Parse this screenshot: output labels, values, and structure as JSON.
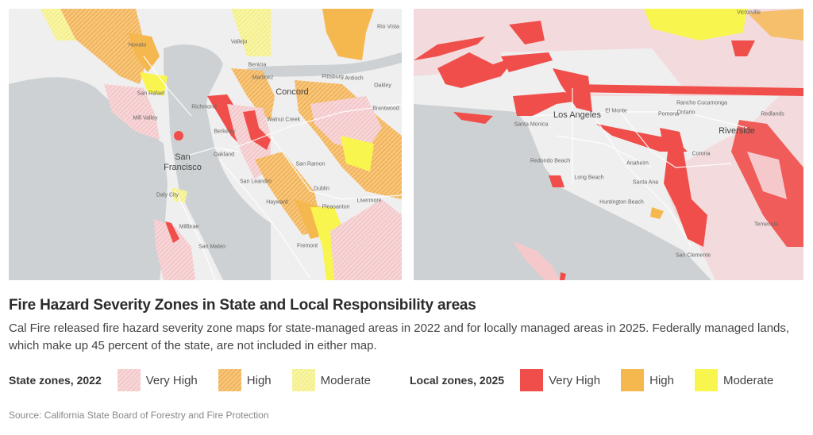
{
  "title": "Fire Hazard Severity Zones in State and Local Responsibility areas",
  "subtitle": "Cal Fire released fire hazard severity zone maps for state-managed areas in 2022 and for locally managed areas in 2025. Federally managed lands, which make up 45 percent of the state, are not included in either map.",
  "legend_state": {
    "title": "State zones, 2022",
    "items": [
      {
        "label": "Very High",
        "color": "#f5c9cc",
        "pattern": "hatched"
      },
      {
        "label": "High",
        "color": "#f3b04e",
        "pattern": "hatched"
      },
      {
        "label": "Moderate",
        "color": "#f5f07a",
        "pattern": "hatched"
      }
    ]
  },
  "legend_local": {
    "title": "Local zones, 2025",
    "items": [
      {
        "label": "Very High",
        "color": "#f04e4a"
      },
      {
        "label": "High",
        "color": "#f5b84f"
      },
      {
        "label": "Moderate",
        "color": "#f9f54f"
      }
    ]
  },
  "source": "Source: California State Board of Forestry and Fire Protection",
  "map_bay_area": {
    "labels": [
      "San Francisco",
      "Concord",
      "Oakland",
      "Berkeley",
      "Richmond",
      "San Rafael",
      "Novato",
      "Vallejo",
      "Hayward",
      "Fremont",
      "Livermore",
      "Dublin",
      "San Ramon",
      "Walnut Creek",
      "Pittsburg",
      "Antioch",
      "Oakley",
      "Brentwood",
      "Rio Vista",
      "Benicia",
      "Martinez",
      "Daly City",
      "San Mateo",
      "San Leandro",
      "Pleasanton",
      "Mill Valley",
      "Millbrae"
    ]
  },
  "map_los_angeles": {
    "labels": [
      "Los Angeles",
      "Riverside",
      "Santa Monica",
      "El Monte",
      "Pomona",
      "Ontario",
      "Rancho Cucamonga",
      "Anaheim",
      "Santa Ana",
      "Long Beach",
      "Redondo Beach",
      "Huntington Beach",
      "Corona",
      "Redlands",
      "Victorville",
      "Temecula",
      "San Clemente"
    ]
  },
  "colors": {
    "water": "#cdd1d3",
    "land": "#efefef"
  }
}
